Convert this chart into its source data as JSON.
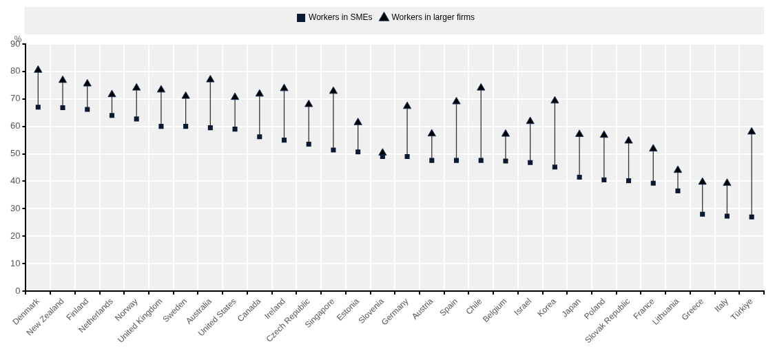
{
  "chart_data": {
    "type": "scatter",
    "ylabel": "%",
    "categories": [
      "Denmark",
      "New Zealand",
      "Finland",
      "Netherlands",
      "Norway",
      "United Kingdom",
      "Sweden",
      "Australia",
      "United States",
      "Canada",
      "Ireland",
      "Czech Republic",
      "Singapore",
      "Estonia",
      "Slovenia",
      "Germany",
      "Austria",
      "Spain",
      "Chile",
      "Belgium",
      "Israel",
      "Korea",
      "Japan",
      "Poland",
      "Slovak Republic",
      "France",
      "Lithuania",
      "Greece",
      "Italy",
      "Türkiye"
    ],
    "series": [
      {
        "name": "Workers in SMEs",
        "color": "#0b1a33",
        "marker": "square",
        "values": [
          67,
          66.8,
          66.2,
          64,
          62.7,
          60,
          60,
          59.5,
          59,
          56.2,
          55,
          53.5,
          51.4,
          50.7,
          49,
          49,
          47.6,
          47.6,
          47.6,
          47.4,
          46.8,
          45.2,
          41.5,
          40.5,
          40.2,
          39.3,
          36.5,
          28,
          27.3,
          27
        ]
      },
      {
        "name": "Workers in larger firms",
        "color": "#000000",
        "marker": "triangle",
        "values": [
          80.5,
          76.8,
          75.5,
          71.6,
          74,
          73.3,
          71,
          77,
          70.6,
          71.8,
          73.8,
          68,
          72.8,
          61.4,
          50.3,
          67.3,
          57.3,
          69,
          74,
          57.2,
          61.8,
          69.3,
          57.1,
          56.8,
          54.7,
          51.8,
          44,
          39.7,
          39.3,
          58
        ]
      }
    ],
    "ylim": [
      0,
      90
    ],
    "yticks": [
      0,
      10,
      20,
      30,
      40,
      50,
      60,
      70,
      80,
      90
    ],
    "grid": true,
    "legend": "top"
  }
}
